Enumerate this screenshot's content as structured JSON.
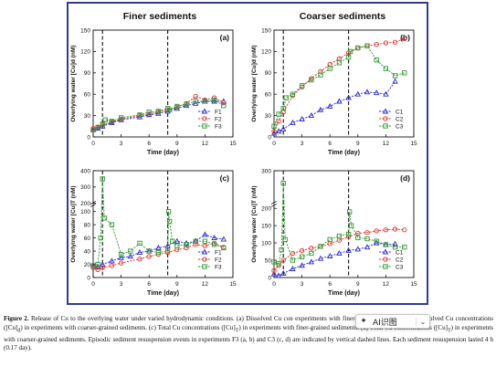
{
  "column_titles": {
    "left": "Finer sediments",
    "right": "Coarser sediments"
  },
  "chart_data": [
    {
      "type": "line",
      "panel": "(a)",
      "xlabel": "Time (day)",
      "ylabel": "Overlying water [Cu]d (nM)",
      "xlim": [
        0,
        15
      ],
      "ylim": [
        0,
        150
      ],
      "xticks": [
        0,
        3,
        6,
        9,
        12,
        15
      ],
      "yticks": [
        0,
        30,
        60,
        90,
        120,
        150
      ],
      "event_days": [
        1,
        8
      ],
      "legend": "bottom-right",
      "series": [
        {
          "name": "F1",
          "marker": "triangle",
          "color": "#2b2bd0",
          "x": [
            0,
            0.5,
            1,
            2,
            3,
            5,
            6,
            7,
            8,
            9,
            10,
            11,
            12,
            13,
            14
          ],
          "y": [
            10,
            12,
            15,
            20,
            24,
            28,
            31,
            33,
            36,
            40,
            44,
            47,
            50,
            50,
            50
          ]
        },
        {
          "name": "F2",
          "marker": "circle",
          "color": "#e0302a",
          "x": [
            0,
            0.5,
            1,
            2,
            3,
            5,
            6,
            7,
            8,
            9,
            10,
            11,
            12,
            13,
            14
          ],
          "y": [
            12,
            14,
            17,
            21,
            25,
            30,
            32,
            35,
            38,
            42,
            47,
            57,
            52,
            55,
            48
          ]
        },
        {
          "name": "F3",
          "marker": "square",
          "color": "#2f9a2f",
          "x": [
            0,
            0.5,
            1,
            1.3,
            2,
            3,
            5,
            6,
            7,
            8,
            8.2,
            9,
            10,
            11,
            12,
            13,
            14
          ],
          "y": [
            10,
            13,
            18,
            24,
            22,
            27,
            31,
            35,
            36,
            40,
            38,
            43,
            46,
            50,
            50,
            52,
            44
          ]
        }
      ]
    },
    {
      "type": "line",
      "panel": "(b)",
      "xlabel": "Time (day)",
      "ylabel": "Overlying water [Cu]d (nM)",
      "xlim": [
        0,
        15
      ],
      "ylim": [
        0,
        150
      ],
      "xticks": [
        0,
        3,
        6,
        9,
        12,
        15
      ],
      "yticks": [
        0,
        30,
        60,
        90,
        120,
        150
      ],
      "event_days": [
        1,
        8
      ],
      "legend": "bottom-right",
      "series": [
        {
          "name": "C1",
          "marker": "triangle",
          "color": "#2b2bd0",
          "x": [
            0,
            0.5,
            1,
            2,
            3,
            4,
            5,
            6,
            7,
            8,
            9,
            10,
            11,
            12,
            13
          ],
          "y": [
            5,
            8,
            11,
            20,
            25,
            30,
            38,
            43,
            50,
            55,
            60,
            63,
            62,
            60,
            78
          ]
        },
        {
          "name": "C2",
          "marker": "circle",
          "color": "#e0302a",
          "x": [
            0,
            0.5,
            1,
            2,
            3,
            4,
            5,
            6,
            7,
            8,
            9,
            10,
            11,
            12,
            13,
            14
          ],
          "y": [
            8,
            22,
            35,
            58,
            70,
            82,
            92,
            102,
            110,
            118,
            125,
            128,
            130,
            132,
            133,
            138
          ]
        },
        {
          "name": "C3",
          "marker": "square",
          "color": "#2f9a2f",
          "x": [
            0,
            0.5,
            1,
            1.3,
            2,
            3,
            4,
            5,
            6,
            7,
            8,
            8.2,
            9,
            10,
            11,
            12,
            13,
            14
          ],
          "y": [
            15,
            32,
            40,
            55,
            60,
            72,
            80,
            87,
            96,
            104,
            112,
            120,
            125,
            128,
            108,
            96,
            86,
            90
          ]
        }
      ]
    },
    {
      "type": "line",
      "panel": "(c)",
      "xlabel": "Time (day)",
      "ylabel": "Overlying water [Cu]T (nM)",
      "xlim": [
        0,
        15
      ],
      "ylim": [
        0,
        400
      ],
      "xticks": [
        0,
        3,
        6,
        9,
        12,
        15
      ],
      "yticks": [
        0,
        20,
        40,
        60,
        80,
        100,
        200,
        300,
        400
      ],
      "axis_break": [
        110,
        190
      ],
      "event_days": [
        1,
        8
      ],
      "legend": "bottom-right",
      "series": [
        {
          "name": "F1",
          "marker": "triangle",
          "color": "#2b2bd0",
          "x": [
            0,
            0.5,
            1,
            2,
            3,
            4,
            5,
            6,
            7,
            8,
            9,
            10,
            11,
            12,
            13,
            14
          ],
          "y": [
            18,
            16,
            20,
            25,
            30,
            32,
            38,
            40,
            45,
            48,
            55,
            52,
            55,
            65,
            60,
            58
          ]
        },
        {
          "name": "F2",
          "marker": "circle",
          "color": "#e0302a",
          "x": [
            0,
            0.5,
            1,
            2,
            3,
            5,
            6,
            7,
            8,
            9,
            10,
            11,
            12,
            13,
            14
          ],
          "y": [
            15,
            12,
            15,
            18,
            22,
            28,
            32,
            35,
            38,
            42,
            45,
            50,
            48,
            52,
            46
          ]
        },
        {
          "name": "F3",
          "marker": "square",
          "color": "#2f9a2f",
          "x": [
            0,
            0.5,
            0.8,
            1,
            1.2,
            2,
            3,
            4,
            5,
            6,
            7,
            8,
            8.1,
            8.2,
            8.5,
            9,
            10,
            11,
            12,
            13,
            14
          ],
          "y": [
            18,
            20,
            60,
            350,
            90,
            80,
            35,
            40,
            52,
            40,
            38,
            40,
            100,
            85,
            55,
            48,
            50,
            55,
            55,
            50,
            45
          ]
        }
      ]
    },
    {
      "type": "line",
      "panel": "(d)",
      "xlabel": "Time (day)",
      "ylabel": "Overlying water [Cu]T (nM)",
      "xlim": [
        0,
        15
      ],
      "ylim": [
        0,
        300
      ],
      "xticks": [
        0,
        3,
        6,
        9,
        12,
        15
      ],
      "yticks": [
        0,
        50,
        100,
        150,
        200,
        300
      ],
      "axis_break": [
        210,
        245
      ],
      "event_days": [
        1,
        8
      ],
      "legend": "bottom-right",
      "series": [
        {
          "name": "C1",
          "marker": "triangle",
          "color": "#2b2bd0",
          "x": [
            0,
            0.5,
            1,
            2,
            3,
            4,
            5,
            6,
            7,
            8,
            9,
            10,
            11,
            12,
            13
          ],
          "y": [
            10,
            5,
            12,
            25,
            35,
            45,
            55,
            62,
            70,
            78,
            82,
            88,
            100,
            95,
            97
          ]
        },
        {
          "name": "C2",
          "marker": "circle",
          "color": "#e0302a",
          "x": [
            0,
            0.5,
            1,
            2,
            3,
            4,
            5,
            6,
            7,
            8,
            9,
            10,
            11,
            12,
            13,
            14
          ],
          "y": [
            20,
            35,
            50,
            70,
            78,
            85,
            90,
            98,
            108,
            118,
            128,
            130,
            135,
            138,
            140,
            138
          ]
        },
        {
          "name": "C3",
          "marker": "square",
          "color": "#2f9a2f",
          "x": [
            0,
            0.5,
            0.8,
            1,
            1.2,
            2,
            3,
            4,
            5,
            6,
            7,
            8,
            8.1,
            8.3,
            9,
            10,
            11,
            12,
            13,
            14
          ],
          "y": [
            45,
            40,
            80,
            280,
            110,
            50,
            60,
            70,
            90,
            110,
            120,
            125,
            190,
            150,
            115,
            112,
            105,
            95,
            88,
            88
          ]
        }
      ]
    }
  ],
  "caption": {
    "label": "Figure 2.",
    "parts": [
      "Release of Cu to the overlying water under varied hydrodynamic conditions. (a) Dissolved Cu co",
      "n experiments with finer-grained sediments. (b) Dissolved Cu concentrations ([Cu]",
      ") in experiments with coarser-grained sediments. (c) Total Cu concentrations ([Cu]",
      ") in experiments with finer-grained sediments. (d) Total Cu concentrations ([Cu]",
      ") in experiments with coarser-grained sediments. Episodic sediment resuspension events in experiments F3 (a, b) and C3 (c, d) are indicated by vertical dashed lines. Each sediment resuspension lasted 4 h (0.17 day)."
    ],
    "sub_d": "d",
    "sub_t": "T"
  },
  "toolbar": {
    "icon": "✦",
    "label": "AI识图",
    "chevron": "⌄"
  }
}
